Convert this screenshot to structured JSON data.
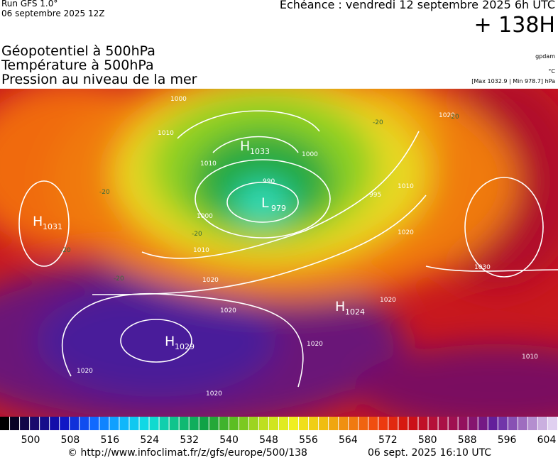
{
  "header": {
    "run": "Run GFS 1.0°",
    "run_date": "06 septembre 2025 12Z",
    "forecast": "Echéance : vendredi 12 septembre 2025 6h UTC",
    "lead": "+ 138H",
    "fields": [
      "Géopotentiel à 500hPa",
      "Température à 500hPa",
      "Pression au niveau de la mer"
    ],
    "units": [
      "gpdam",
      "°C",
      "[Max 1032.9 | Min 978.7] hPa"
    ]
  },
  "map": {
    "centers": [
      {
        "label": "H",
        "value": "1033"
      },
      {
        "label": "L",
        "value": "979"
      },
      {
        "label": "H",
        "value": "1031"
      },
      {
        "label": "H",
        "value": "1024"
      },
      {
        "label": "H",
        "value": "1029"
      }
    ],
    "isobar_labels": [
      "1000",
      "1010",
      "1010",
      "1000",
      "1010",
      "1000",
      "990",
      "995",
      "1010",
      "1020",
      "1020",
      "1020",
      "1020",
      "1030",
      "1020",
      "1020",
      "1010",
      "1020",
      "1020"
    ],
    "temperature_labels": [
      "-20",
      "-20",
      "-20",
      "-20",
      "-20",
      "-20"
    ]
  },
  "colorbar": {
    "ticks": [
      500,
      508,
      516,
      524,
      532,
      540,
      548,
      556,
      564,
      572,
      580,
      588,
      596,
      604
    ]
  },
  "footer": {
    "url": "© http://www.infoclimat.fr/z/gfs/europe/500/138",
    "timestamp": "06 sept. 2025 16:10 UTC"
  }
}
